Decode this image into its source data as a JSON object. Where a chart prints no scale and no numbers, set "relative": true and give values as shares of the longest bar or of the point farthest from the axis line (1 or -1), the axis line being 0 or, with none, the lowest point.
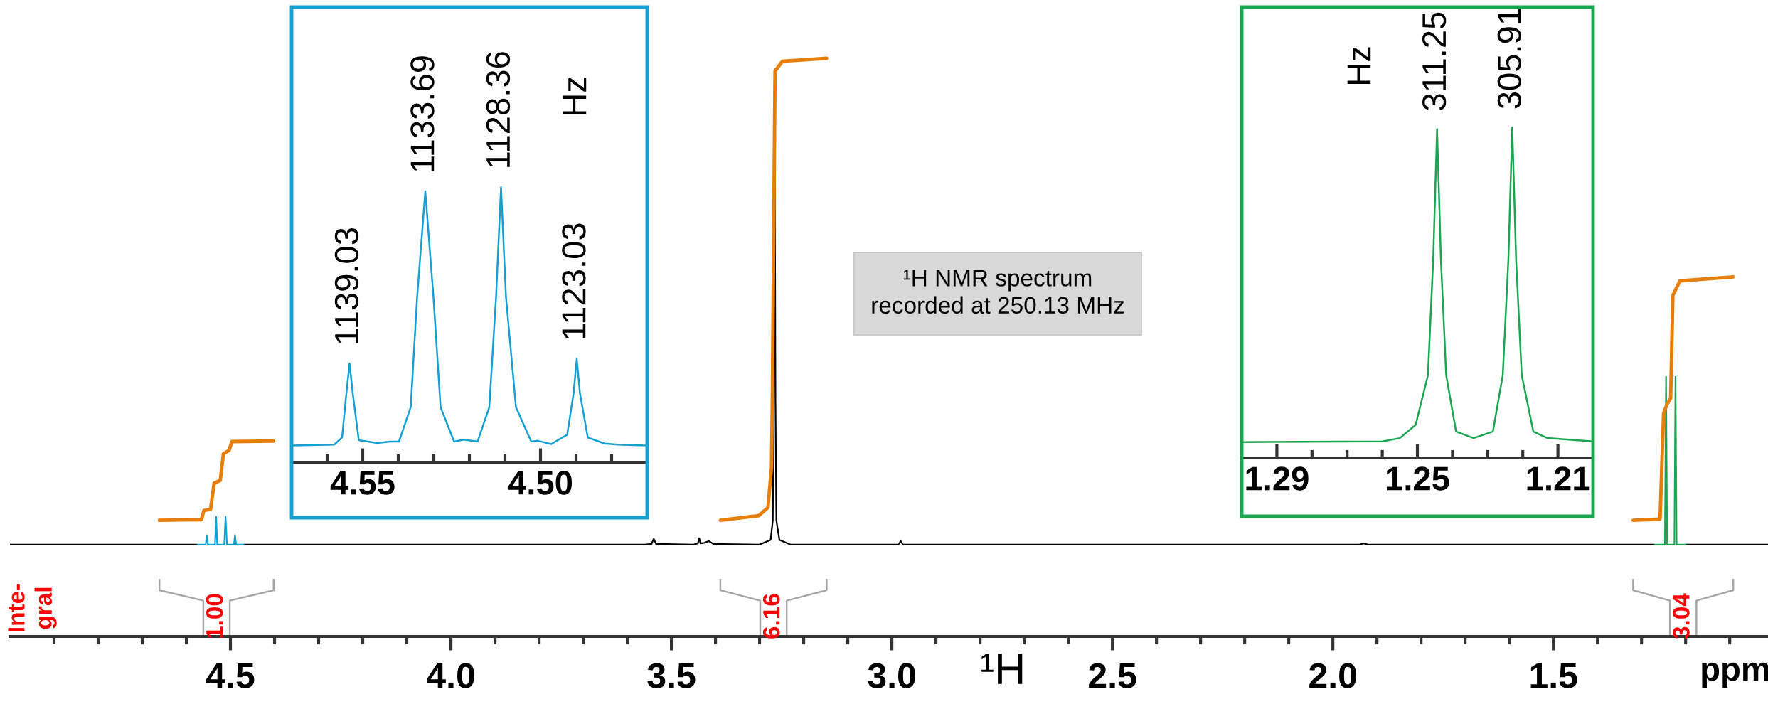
{
  "chart_data": [
    {
      "type": "line",
      "relative": true,
      "xlabel": "¹H",
      "xlim": [
        5.0,
        1.01
      ],
      "xticks": [
        {
          "value": 4.9,
          "label": null
        },
        {
          "value": 4.8,
          "label": null
        },
        {
          "value": 4.7,
          "label": null
        },
        {
          "value": 4.6,
          "label": null
        },
        {
          "value": 4.5,
          "label": "4.5"
        },
        {
          "value": 4.4,
          "label": null
        },
        {
          "value": 4.3,
          "label": null
        },
        {
          "value": 4.2,
          "label": null
        },
        {
          "value": 4.1,
          "label": null
        },
        {
          "value": 4.0,
          "label": "4.0"
        },
        {
          "value": 3.9,
          "label": null
        },
        {
          "value": 3.8,
          "label": null
        },
        {
          "value": 3.7,
          "label": null
        },
        {
          "value": 3.6,
          "label": null
        },
        {
          "value": 3.5,
          "label": "3.5"
        },
        {
          "value": 3.4,
          "label": null
        },
        {
          "value": 3.3,
          "label": null
        },
        {
          "value": 3.2,
          "label": null
        },
        {
          "value": 3.1,
          "label": null
        },
        {
          "value": 3.0,
          "label": "3.0"
        },
        {
          "value": 2.9,
          "label": null
        },
        {
          "value": 2.8,
          "label": null
        },
        {
          "value": 2.7,
          "label": null
        },
        {
          "value": 2.6,
          "label": null
        },
        {
          "value": 2.5,
          "label": "2.5"
        },
        {
          "value": 2.4,
          "label": null
        },
        {
          "value": 2.3,
          "label": null
        },
        {
          "value": 2.2,
          "label": null
        },
        {
          "value": 2.1,
          "label": null
        },
        {
          "value": 2.0,
          "label": "2.0"
        },
        {
          "value": 1.9,
          "label": null
        },
        {
          "value": 1.8,
          "label": null
        },
        {
          "value": 1.7,
          "label": null
        },
        {
          "value": 1.6,
          "label": null
        },
        {
          "value": 1.5,
          "label": "1.5"
        },
        {
          "value": 1.4,
          "label": null
        },
        {
          "value": 1.3,
          "label": null
        },
        {
          "value": 1.2,
          "label": null
        },
        {
          "value": 1.1,
          "label": null
        }
      ],
      "series": [
        {
          "color": "#000000",
          "x": [
            5.0,
            4.575,
            4.55,
            4.47,
            3.56,
            3.545,
            3.54,
            3.535,
            3.45,
            3.44,
            3.437,
            3.434,
            3.425,
            3.415,
            3.405,
            3.3,
            3.275,
            3.27,
            3.268,
            3.266,
            3.264,
            3.262,
            3.255,
            3.23,
            2.985,
            2.98,
            2.975,
            1.94,
            1.93,
            1.92,
            1.27,
            1.25,
            1.2,
            1.01
          ],
          "values": [
            0.159,
            0.159,
            null,
            0.159,
            0.159,
            0.16,
            0.169,
            0.16,
            0.159,
            0.161,
            0.17,
            0.161,
            0.162,
            0.165,
            0.16,
            0.159,
            0.167,
            0.201,
            0.411,
            0.981,
            0.411,
            0.201,
            0.167,
            0.159,
            0.159,
            0.165,
            0.159,
            0.159,
            0.161,
            0.159,
            0.159,
            null,
            0.159,
            0.159
          ]
        },
        {
          "color": "#14a0d2",
          "x": [
            4.575,
            4.556,
            4.5537,
            4.551,
            4.535,
            4.5324,
            4.53,
            4.514,
            4.5111,
            4.508,
            4.492,
            4.4898,
            4.487,
            4.47
          ],
          "values": [
            0.159,
            0.159,
            0.175,
            0.159,
            0.159,
            0.207,
            0.159,
            0.159,
            0.207,
            0.159,
            0.159,
            0.175,
            0.159,
            0.159
          ]
        },
        {
          "color": "#1aa651",
          "x": [
            1.27,
            1.247,
            1.2444,
            1.242,
            1.2255,
            1.223,
            1.2205,
            1.2
          ],
          "values": [
            0.159,
            0.159,
            0.449,
            0.159,
            0.159,
            0.449,
            0.159,
            0.159
          ]
        },
        {
          "color": "#e87e0a",
          "x": [
            4.661,
            4.566,
            4.56,
            4.545,
            4.537,
            4.523,
            4.516,
            4.503,
            4.497,
            4.402,
            4.0,
            3.389,
            3.302,
            3.281,
            3.273,
            3.271,
            3.265,
            3.248,
            3.148,
            2.0,
            1.319,
            1.258,
            1.25,
            1.242,
            1.234,
            1.229,
            1.213,
            1.092
          ],
          "values": [
            0.201,
            0.202,
            0.218,
            0.22,
            0.265,
            0.27,
            0.316,
            0.322,
            0.337,
            0.338,
            null,
            0.201,
            0.209,
            0.223,
            0.293,
            0.411,
            0.978,
            0.995,
            1.0,
            null,
            0.201,
            0.203,
            0.386,
            0.402,
            0.412,
            0.59,
            0.615,
            0.622
          ]
        }
      ],
      "annotations": [
        "Inte-\ngral",
        "1.00",
        "6.16",
        "3.04",
        "¹H NMR spectrum\nrecorded at 250.13 MHz",
        "ppm"
      ]
    },
    {
      "type": "line",
      "relative": true,
      "xlim": [
        4.57,
        4.47
      ],
      "xticks": [
        {
          "value": 4.56,
          "label": null
        },
        4.55,
        {
          "value": 4.54,
          "label": null
        },
        {
          "value": 4.53,
          "label": null
        },
        {
          "value": 4.52,
          "label": null
        },
        {
          "value": 4.51,
          "label": null
        },
        {
          "value": 4.5,
          "label": "4.50"
        },
        {
          "value": 4.49,
          "label": null
        },
        {
          "value": 4.48,
          "label": null
        }
      ],
      "series": [
        {
          "color": "#14a0d2",
          "x": [
            4.57,
            4.558,
            4.5558,
            4.5546,
            4.5537,
            4.5528,
            4.5511,
            4.546,
            4.5422,
            4.5398,
            4.5365,
            4.5347,
            4.5324,
            4.5301,
            4.5281,
            4.5243,
            4.5215,
            4.5177,
            4.5144,
            4.5125,
            4.5111,
            4.5097,
            4.5069,
            4.5026,
            4.5008,
            4.497,
            4.4925,
            4.4907,
            4.4898,
            4.4889,
            4.4867,
            4.482,
            4.4782,
            4.4701
          ],
          "values": [
            0.061,
            0.064,
            0.09,
            0.25,
            0.359,
            0.25,
            0.08,
            0.07,
            0.075,
            0.075,
            0.2,
            0.6,
            0.985,
            0.6,
            0.2,
            0.075,
            0.082,
            0.075,
            0.2,
            0.6,
            1.0,
            0.6,
            0.2,
            0.075,
            0.078,
            0.066,
            0.1,
            0.25,
            0.376,
            0.25,
            0.09,
            0.068,
            0.064,
            0.061
          ]
        }
      ],
      "annotations": [
        {
          "text": "1139.03",
          "x": 4.5537,
          "y": 0.359
        },
        {
          "text": "1133.69",
          "x": 4.5324,
          "y": 0.985
        },
        {
          "text": "1128.36",
          "x": 4.5111,
          "y": 1.0
        },
        {
          "text": "1123.03",
          "x": 4.4898,
          "y": 0.376
        },
        "Hz"
      ]
    },
    {
      "type": "line",
      "relative": true,
      "xlim": [
        1.3,
        1.2
      ],
      "xticks": [
        1.29,
        {
          "value": 1.28,
          "label": null
        },
        {
          "value": 1.27,
          "label": null
        },
        {
          "value": 1.26,
          "label": null
        },
        1.25,
        {
          "value": 1.24,
          "label": null
        },
        {
          "value": 1.23,
          "label": null
        },
        {
          "value": 1.22,
          "label": null
        },
        1.21
      ],
      "series": [
        {
          "color": "#1aa651",
          "x": [
            1.3,
            1.26,
            1.255,
            1.2505,
            1.247,
            1.2455,
            1.2444,
            1.2433,
            1.2418,
            1.239,
            1.234,
            1.2285,
            1.2257,
            1.2241,
            1.223,
            1.2219,
            1.2203,
            1.217,
            1.213,
            1.2
          ],
          "values": [
            0.048,
            0.05,
            0.06,
            0.1,
            0.25,
            0.6,
            0.995,
            0.6,
            0.25,
            0.08,
            0.06,
            0.08,
            0.25,
            0.6,
            1.0,
            0.6,
            0.25,
            0.08,
            0.06,
            0.05
          ]
        }
      ],
      "annotations": [
        {
          "text": "311.25",
          "x": 1.2444,
          "y": 0.995
        },
        {
          "text": "305.91",
          "x": 1.223,
          "y": 1.0
        },
        "Hz"
      ]
    }
  ]
}
